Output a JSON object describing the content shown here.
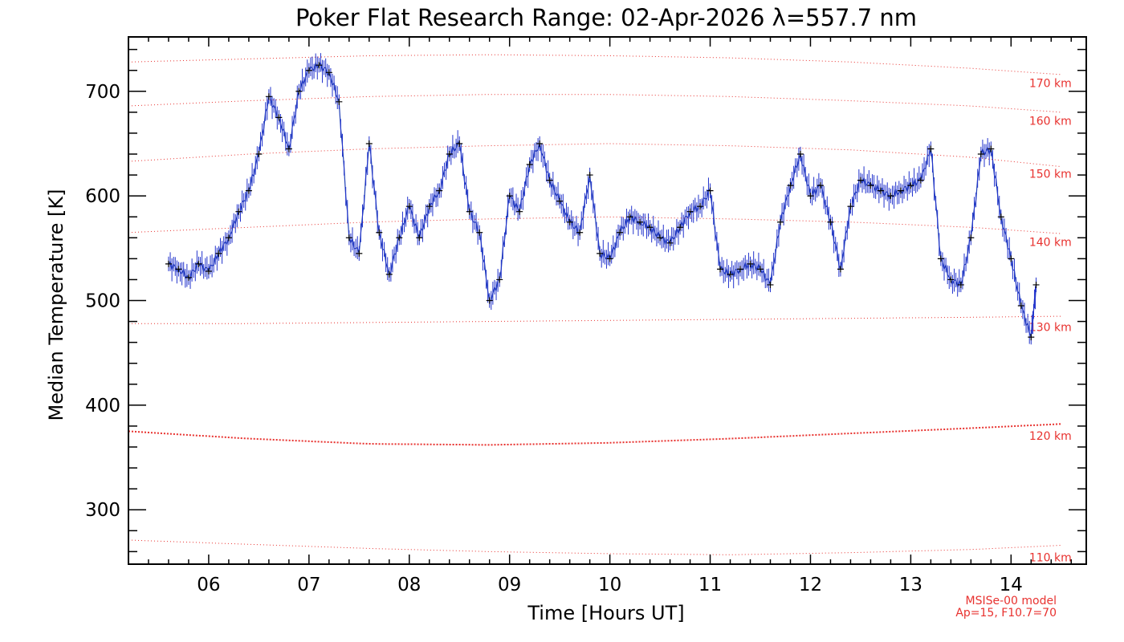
{
  "chart_data": {
    "type": "line",
    "title": "Poker Flat Research Range: 02-Apr-2026 λ=557.7 nm",
    "xlabel": "Time [Hours UT]",
    "ylabel": "Median Temperature [K]",
    "xlim": [
      5.2,
      14.75
    ],
    "ylim": [
      248,
      752
    ],
    "x_ticks": [
      6,
      7,
      8,
      9,
      10,
      11,
      12,
      13,
      14
    ],
    "x_tick_labels": [
      "06",
      "07",
      "08",
      "09",
      "10",
      "11",
      "12",
      "13",
      "14"
    ],
    "y_ticks": [
      300,
      400,
      500,
      600,
      700
    ],
    "y_tick_labels": [
      "300",
      "400",
      "500",
      "600",
      "700"
    ],
    "grid": false,
    "series": [
      {
        "role": "measurement",
        "color": "#1f3fb5",
        "marker_color": "#000000",
        "error_bar_color": "#2233cc",
        "points": [
          [
            5.6,
            535
          ],
          [
            5.7,
            530
          ],
          [
            5.8,
            522
          ],
          [
            5.9,
            535
          ],
          [
            6.0,
            528
          ],
          [
            6.1,
            545
          ],
          [
            6.2,
            560
          ],
          [
            6.3,
            585
          ],
          [
            6.4,
            605
          ],
          [
            6.5,
            640
          ],
          [
            6.6,
            695
          ],
          [
            6.7,
            675
          ],
          [
            6.8,
            645
          ],
          [
            6.9,
            700
          ],
          [
            7.0,
            720
          ],
          [
            7.1,
            725
          ],
          [
            7.2,
            718
          ],
          [
            7.3,
            690
          ],
          [
            7.4,
            560
          ],
          [
            7.5,
            545
          ],
          [
            7.6,
            650
          ],
          [
            7.7,
            565
          ],
          [
            7.8,
            525
          ],
          [
            7.9,
            560
          ],
          [
            8.0,
            590
          ],
          [
            8.1,
            560
          ],
          [
            8.2,
            590
          ],
          [
            8.3,
            605
          ],
          [
            8.4,
            640
          ],
          [
            8.5,
            650
          ],
          [
            8.6,
            585
          ],
          [
            8.7,
            565
          ],
          [
            8.8,
            500
          ],
          [
            8.9,
            520
          ],
          [
            9.0,
            600
          ],
          [
            9.1,
            585
          ],
          [
            9.2,
            630
          ],
          [
            9.3,
            650
          ],
          [
            9.4,
            615
          ],
          [
            9.5,
            595
          ],
          [
            9.6,
            575
          ],
          [
            9.7,
            565
          ],
          [
            9.8,
            620
          ],
          [
            9.9,
            545
          ],
          [
            10.0,
            540
          ],
          [
            10.1,
            565
          ],
          [
            10.2,
            580
          ],
          [
            10.3,
            575
          ],
          [
            10.4,
            570
          ],
          [
            10.5,
            560
          ],
          [
            10.6,
            555
          ],
          [
            10.7,
            570
          ],
          [
            10.8,
            585
          ],
          [
            10.9,
            590
          ],
          [
            11.0,
            605
          ],
          [
            11.1,
            530
          ],
          [
            11.2,
            525
          ],
          [
            11.3,
            530
          ],
          [
            11.4,
            535
          ],
          [
            11.5,
            530
          ],
          [
            11.6,
            515
          ],
          [
            11.7,
            575
          ],
          [
            11.8,
            610
          ],
          [
            11.9,
            640
          ],
          [
            12.0,
            600
          ],
          [
            12.1,
            610
          ],
          [
            12.2,
            575
          ],
          [
            12.3,
            530
          ],
          [
            12.4,
            590
          ],
          [
            12.5,
            615
          ],
          [
            12.6,
            610
          ],
          [
            12.7,
            605
          ],
          [
            12.8,
            600
          ],
          [
            12.9,
            605
          ],
          [
            13.0,
            610
          ],
          [
            13.1,
            615
          ],
          [
            13.2,
            645
          ],
          [
            13.3,
            540
          ],
          [
            13.4,
            520
          ],
          [
            13.5,
            515
          ],
          [
            13.6,
            560
          ],
          [
            13.7,
            640
          ],
          [
            13.8,
            645
          ],
          [
            13.9,
            580
          ],
          [
            14.0,
            540
          ],
          [
            14.1,
            495
          ],
          [
            14.2,
            465
          ],
          [
            14.25,
            515
          ]
        ]
      }
    ],
    "model_curves": {
      "color": "#e8322f",
      "x": [
        5.2,
        6.4,
        7.6,
        8.8,
        10.0,
        11.2,
        12.4,
        13.6,
        14.5
      ],
      "curves": [
        {
          "name": "110 km",
          "values": [
            271,
            267,
            263,
            260,
            258,
            257,
            259,
            262,
            266
          ]
        },
        {
          "name": "120 km",
          "values": [
            375,
            368,
            363,
            362,
            364,
            368,
            373,
            378,
            382
          ]
        },
        {
          "name": "130 km",
          "values": [
            478,
            478,
            479,
            480,
            481,
            482,
            483,
            484,
            485
          ]
        },
        {
          "name": "140 km",
          "values": [
            565,
            570,
            575,
            578,
            580,
            578,
            575,
            570,
            564
          ]
        },
        {
          "name": "150 km",
          "values": [
            633,
            640,
            645,
            648,
            650,
            648,
            644,
            637,
            628
          ]
        },
        {
          "name": "160 km",
          "values": [
            686,
            691,
            695,
            697,
            697,
            695,
            691,
            686,
            680
          ]
        },
        {
          "name": "170 km",
          "values": [
            728,
            731,
            734,
            735,
            734,
            732,
            728,
            722,
            716
          ]
        }
      ]
    },
    "model_note": [
      "MSISe-00 model",
      "Ap=15, F10.7=70"
    ]
  }
}
